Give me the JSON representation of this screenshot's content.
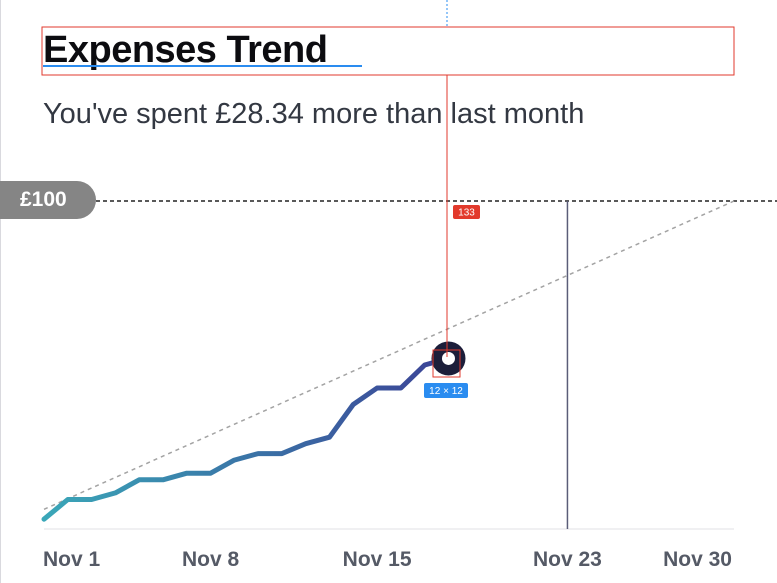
{
  "header": {
    "title": "Expenses Trend",
    "subtitle": "You've spent £28.34 more than last month"
  },
  "budget": {
    "label": "£100",
    "value": 100
  },
  "chart_data": {
    "type": "line",
    "title": "Expenses Trend",
    "subtitle": "You've spent £28.34 more than last month",
    "x_tick_labels": [
      "Nov 1",
      "Nov 8",
      "Nov 15",
      "Nov 23",
      "Nov 30"
    ],
    "x_tick_days": [
      1,
      8,
      15,
      23,
      30
    ],
    "xlim": [
      1,
      30
    ],
    "ylim": [
      0,
      100
    ],
    "budget_line": 100,
    "today_marker_day": 23,
    "series": [
      {
        "kind": "spending",
        "color_start": "#3aa7b8",
        "color_end": "#3b4296",
        "x": [
          1,
          2,
          3,
          4,
          5,
          6,
          7,
          8,
          9,
          10,
          11,
          12,
          13,
          14,
          15,
          16,
          17,
          18
        ],
        "y": [
          3,
          9,
          9,
          11,
          15,
          15,
          17,
          17,
          21,
          23,
          23,
          26,
          28,
          38,
          43,
          43,
          50,
          52
        ]
      },
      {
        "kind": "trend",
        "style": "dotted",
        "color": "#a3a3a3",
        "x": [
          1,
          30
        ],
        "y": [
          6,
          100
        ]
      }
    ]
  },
  "inspector": {
    "distance_label": "133",
    "size_label": "12 × 12",
    "colors": {
      "guide": "#e23a2c",
      "size": "#2a8cf0"
    }
  }
}
